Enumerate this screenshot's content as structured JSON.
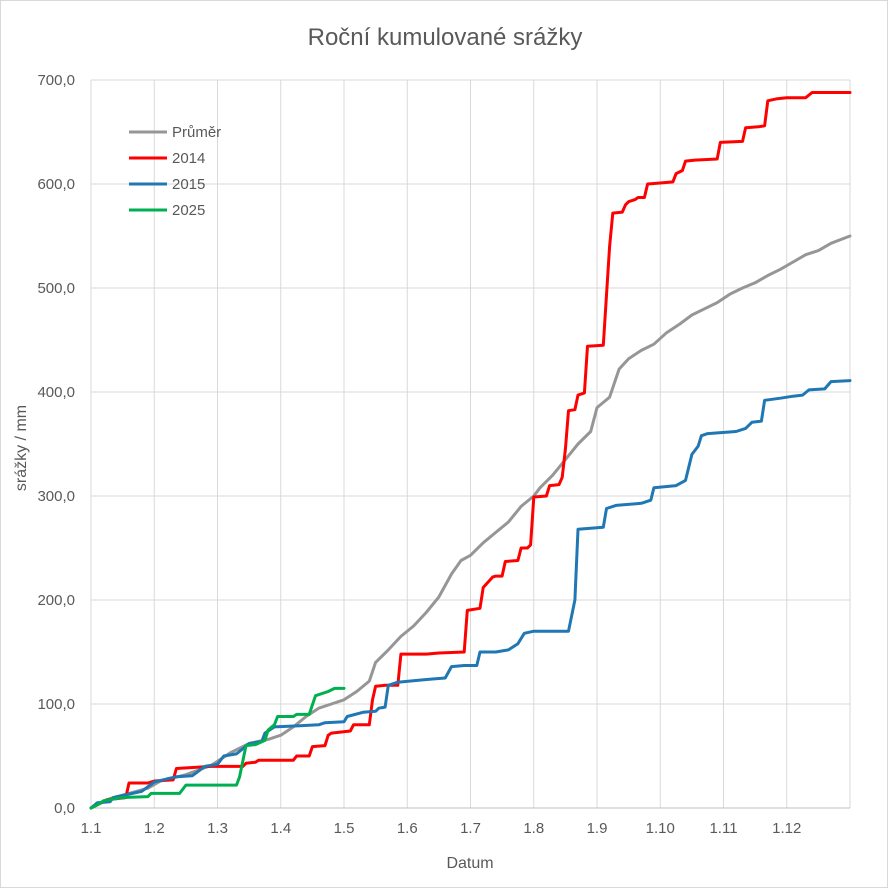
{
  "chart_data": {
    "type": "line",
    "title": "Roční kumulované srážky",
    "xlabel": "Datum",
    "ylabel": "srážky / mm",
    "ylim": [
      0,
      700
    ],
    "yticks": [
      0,
      100,
      200,
      300,
      400,
      500,
      600,
      700
    ],
    "ytick_labels": [
      "0,0",
      "100,0",
      "200,0",
      "300,0",
      "400,0",
      "500,0",
      "600,0",
      "700,0"
    ],
    "xlim": [
      1,
      13
    ],
    "xticks": [
      1,
      2,
      3,
      4,
      5,
      6,
      7,
      8,
      9,
      10,
      11,
      12
    ],
    "xtick_labels": [
      "1.1",
      "1.2",
      "1.3",
      "1.4",
      "1.5",
      "1.6",
      "1.7",
      "1.8",
      "1.9",
      "1.10",
      "1.11",
      "1.12"
    ],
    "grid": true,
    "legend_position": "top-left",
    "series": [
      {
        "name": "Průměr",
        "color": "#969696",
        "points": [
          [
            1,
            0
          ],
          [
            1.3,
            9
          ],
          [
            1.6,
            14
          ],
          [
            1.9,
            19
          ],
          [
            2.1,
            26
          ],
          [
            2.5,
            32
          ],
          [
            2.9,
            41
          ],
          [
            3.2,
            53
          ],
          [
            3.5,
            62
          ],
          [
            3.8,
            66
          ],
          [
            4.0,
            70
          ],
          [
            4.2,
            78
          ],
          [
            4.4,
            88
          ],
          [
            4.6,
            96
          ],
          [
            4.8,
            100
          ],
          [
            5.0,
            104
          ],
          [
            5.2,
            112
          ],
          [
            5.4,
            122
          ],
          [
            5.5,
            140
          ],
          [
            5.7,
            152
          ],
          [
            5.9,
            165
          ],
          [
            6.1,
            175
          ],
          [
            6.3,
            188
          ],
          [
            6.5,
            203
          ],
          [
            6.7,
            225
          ],
          [
            6.85,
            238
          ],
          [
            7.0,
            243
          ],
          [
            7.2,
            255
          ],
          [
            7.4,
            265
          ],
          [
            7.6,
            275
          ],
          [
            7.8,
            290
          ],
          [
            8.0,
            300
          ],
          [
            8.1,
            308
          ],
          [
            8.3,
            320
          ],
          [
            8.5,
            335
          ],
          [
            8.7,
            350
          ],
          [
            8.9,
            362
          ],
          [
            9.0,
            385
          ],
          [
            9.2,
            395
          ],
          [
            9.35,
            422
          ],
          [
            9.5,
            432
          ],
          [
            9.7,
            440
          ],
          [
            9.9,
            446
          ],
          [
            10.1,
            457
          ],
          [
            10.3,
            465
          ],
          [
            10.5,
            474
          ],
          [
            10.7,
            480
          ],
          [
            10.9,
            486
          ],
          [
            11.1,
            494
          ],
          [
            11.3,
            500
          ],
          [
            11.5,
            505
          ],
          [
            11.7,
            512
          ],
          [
            11.9,
            518
          ],
          [
            12.1,
            525
          ],
          [
            12.3,
            532
          ],
          [
            12.5,
            536
          ],
          [
            12.7,
            543
          ],
          [
            13.0,
            550
          ]
        ]
      },
      {
        "name": "2014",
        "color": "#ff0000",
        "points": [
          [
            1,
            0
          ],
          [
            1.25,
            8
          ],
          [
            1.55,
            10
          ],
          [
            1.6,
            24
          ],
          [
            1.9,
            24
          ],
          [
            2.0,
            26
          ],
          [
            2.3,
            27
          ],
          [
            2.35,
            38
          ],
          [
            2.9,
            40
          ],
          [
            3.4,
            40
          ],
          [
            3.45,
            43
          ],
          [
            3.6,
            44
          ],
          [
            3.65,
            46
          ],
          [
            4.2,
            46
          ],
          [
            4.25,
            50
          ],
          [
            4.45,
            50
          ],
          [
            4.5,
            59
          ],
          [
            4.7,
            60
          ],
          [
            4.75,
            70
          ],
          [
            4.8,
            72
          ],
          [
            5.1,
            74
          ],
          [
            5.15,
            80
          ],
          [
            5.4,
            80
          ],
          [
            5.45,
            104
          ],
          [
            5.5,
            117
          ],
          [
            5.65,
            118
          ],
          [
            5.85,
            118
          ],
          [
            5.9,
            148
          ],
          [
            6.3,
            148
          ],
          [
            6.5,
            149
          ],
          [
            6.9,
            150
          ],
          [
            6.95,
            190
          ],
          [
            7.15,
            192
          ],
          [
            7.2,
            212
          ],
          [
            7.35,
            222
          ],
          [
            7.4,
            223
          ],
          [
            7.5,
            223
          ],
          [
            7.55,
            237
          ],
          [
            7.75,
            238
          ],
          [
            7.8,
            250
          ],
          [
            7.9,
            250
          ],
          [
            7.95,
            253
          ],
          [
            8.0,
            299
          ],
          [
            8.2,
            300
          ],
          [
            8.25,
            310
          ],
          [
            8.4,
            311
          ],
          [
            8.45,
            318
          ],
          [
            8.5,
            345
          ],
          [
            8.55,
            382
          ],
          [
            8.65,
            383
          ],
          [
            8.7,
            397
          ],
          [
            8.8,
            399
          ],
          [
            8.85,
            444
          ],
          [
            9.1,
            445
          ],
          [
            9.2,
            540
          ],
          [
            9.25,
            572
          ],
          [
            9.4,
            573
          ],
          [
            9.45,
            580
          ],
          [
            9.5,
            583
          ],
          [
            9.6,
            585
          ],
          [
            9.65,
            587
          ],
          [
            9.75,
            587
          ],
          [
            9.8,
            600
          ],
          [
            10.0,
            601
          ],
          [
            10.2,
            602
          ],
          [
            10.25,
            610
          ],
          [
            10.35,
            613
          ],
          [
            10.4,
            622
          ],
          [
            10.55,
            623
          ],
          [
            10.9,
            624
          ],
          [
            10.95,
            640
          ],
          [
            11.3,
            641
          ],
          [
            11.35,
            654
          ],
          [
            11.55,
            655
          ],
          [
            11.65,
            656
          ],
          [
            11.7,
            680
          ],
          [
            11.85,
            682
          ],
          [
            12.0,
            683
          ],
          [
            12.3,
            683
          ],
          [
            12.4,
            688
          ],
          [
            13.0,
            688
          ]
        ]
      },
      {
        "name": "2015",
        "color": "#1f77b4",
        "points": [
          [
            1,
            0
          ],
          [
            1.1,
            5
          ],
          [
            1.3,
            6
          ],
          [
            1.35,
            10
          ],
          [
            1.5,
            12
          ],
          [
            1.8,
            16
          ],
          [
            2.0,
            25
          ],
          [
            2.2,
            28
          ],
          [
            2.35,
            30
          ],
          [
            2.6,
            31
          ],
          [
            2.8,
            40
          ],
          [
            3.0,
            42
          ],
          [
            3.1,
            50
          ],
          [
            3.3,
            52
          ],
          [
            3.5,
            62
          ],
          [
            3.7,
            64
          ],
          [
            3.75,
            72
          ],
          [
            3.9,
            78
          ],
          [
            4.3,
            79
          ],
          [
            4.6,
            80
          ],
          [
            4.7,
            82
          ],
          [
            5.0,
            83
          ],
          [
            5.05,
            88
          ],
          [
            5.3,
            92
          ],
          [
            5.5,
            93
          ],
          [
            5.55,
            96
          ],
          [
            5.65,
            97
          ],
          [
            5.7,
            118
          ],
          [
            5.85,
            121
          ],
          [
            6.2,
            123
          ],
          [
            6.4,
            124
          ],
          [
            6.6,
            125
          ],
          [
            6.7,
            136
          ],
          [
            6.9,
            137
          ],
          [
            7.1,
            137
          ],
          [
            7.15,
            150
          ],
          [
            7.4,
            150
          ],
          [
            7.6,
            152
          ],
          [
            7.75,
            158
          ],
          [
            7.85,
            168
          ],
          [
            8.0,
            170
          ],
          [
            8.55,
            170
          ],
          [
            8.65,
            200
          ],
          [
            8.7,
            268
          ],
          [
            8.9,
            269
          ],
          [
            9.1,
            270
          ],
          [
            9.15,
            288
          ],
          [
            9.3,
            291
          ],
          [
            9.7,
            293
          ],
          [
            9.85,
            296
          ],
          [
            9.9,
            308
          ],
          [
            10.25,
            310
          ],
          [
            10.4,
            315
          ],
          [
            10.5,
            340
          ],
          [
            10.6,
            348
          ],
          [
            10.65,
            358
          ],
          [
            10.75,
            360
          ],
          [
            11.2,
            362
          ],
          [
            11.35,
            365
          ],
          [
            11.45,
            371
          ],
          [
            11.6,
            372
          ],
          [
            11.65,
            392
          ],
          [
            11.9,
            394
          ],
          [
            12.1,
            396
          ],
          [
            12.25,
            397
          ],
          [
            12.35,
            402
          ],
          [
            12.6,
            403
          ],
          [
            12.7,
            410
          ],
          [
            13.0,
            411
          ]
        ]
      },
      {
        "name": "2025",
        "color": "#00b050",
        "points": [
          [
            1,
            0
          ],
          [
            1.1,
            3
          ],
          [
            1.2,
            7
          ],
          [
            1.5,
            10
          ],
          [
            1.9,
            11
          ],
          [
            1.95,
            14
          ],
          [
            2.4,
            14
          ],
          [
            2.5,
            22
          ],
          [
            2.9,
            22
          ],
          [
            3.3,
            22
          ],
          [
            3.35,
            30
          ],
          [
            3.45,
            60
          ],
          [
            3.6,
            61
          ],
          [
            3.75,
            65
          ],
          [
            3.8,
            75
          ],
          [
            3.9,
            80
          ],
          [
            3.95,
            88
          ],
          [
            4.2,
            88
          ],
          [
            4.25,
            90
          ],
          [
            4.45,
            90
          ],
          [
            4.55,
            108
          ],
          [
            4.75,
            112
          ],
          [
            4.85,
            115
          ],
          [
            5.0,
            115
          ]
        ]
      }
    ]
  }
}
